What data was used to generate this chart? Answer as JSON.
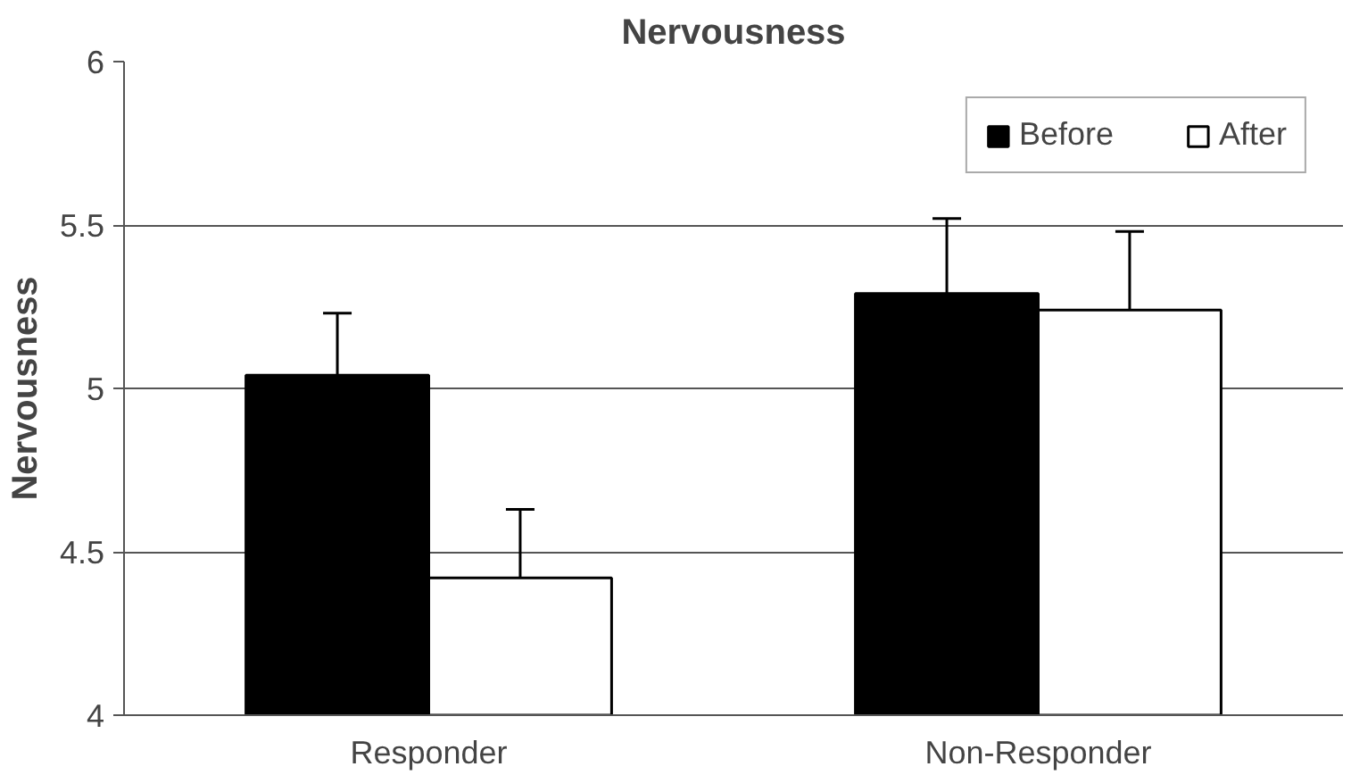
{
  "chart_data": {
    "type": "bar",
    "title": "Nervousness",
    "ylabel": "Nervousness",
    "categories": [
      "Responder",
      "Non-Responder"
    ],
    "series": [
      {
        "name": "Before",
        "color": "#000000",
        "values": [
          5.04,
          5.29
        ],
        "errors": [
          [
            5.04,
            5.23
          ],
          [
            5.29,
            5.52
          ]
        ]
      },
      {
        "name": "After",
        "color": "#ffffff",
        "values": [
          4.42,
          5.24
        ],
        "errors": [
          [
            4.42,
            4.63
          ],
          [
            5.24,
            5.48
          ]
        ]
      }
    ],
    "ylim": [
      4,
      6
    ],
    "yticks": [
      4,
      4.5,
      5,
      5.5,
      6
    ],
    "grid": "y",
    "legend": "top right"
  }
}
